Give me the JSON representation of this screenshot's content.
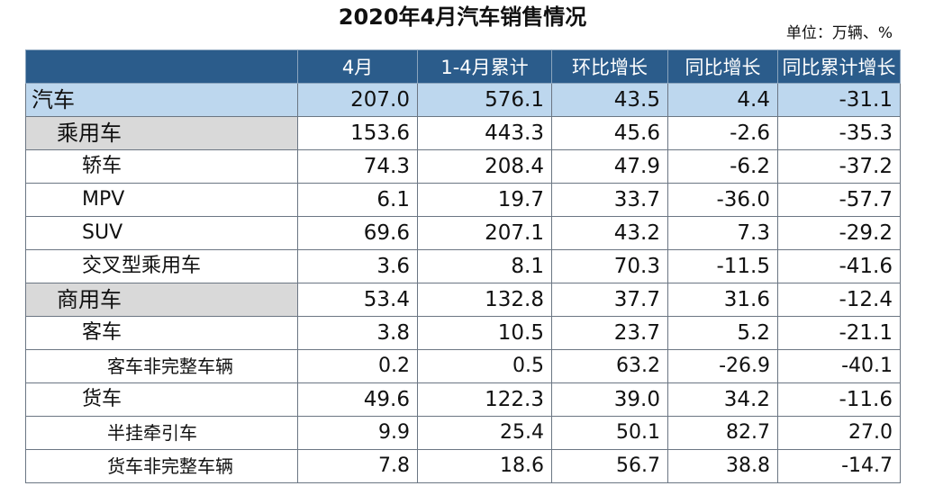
{
  "title": "2020年4月汽车销售情况",
  "unit": "单位：万辆、%",
  "columns": [
    "",
    "4月",
    "1-4月累计",
    "环比增长",
    "同比增长",
    "同比累计增长"
  ],
  "rows": [
    {
      "level": 0,
      "label": "汽车",
      "values": [
        "207.0",
        "576.1",
        "43.5",
        "4.4",
        "-31.1"
      ]
    },
    {
      "level": 1,
      "label": "乘用车",
      "values": [
        "153.6",
        "443.3",
        "45.6",
        "-2.6",
        "-35.3"
      ]
    },
    {
      "level": 2,
      "label": "轿车",
      "values": [
        "74.3",
        "208.4",
        "47.9",
        "-6.2",
        "-37.2"
      ]
    },
    {
      "level": 2,
      "label": "MPV",
      "values": [
        "6.1",
        "19.7",
        "33.7",
        "-36.0",
        "-57.7"
      ]
    },
    {
      "level": 2,
      "label": "SUV",
      "values": [
        "69.6",
        "207.1",
        "43.2",
        "7.3",
        "-29.2"
      ]
    },
    {
      "level": 2,
      "label": "交叉型乘用车",
      "values": [
        "3.6",
        "8.1",
        "70.3",
        "-11.5",
        "-41.6"
      ]
    },
    {
      "level": 1,
      "label": "商用车",
      "values": [
        "53.4",
        "132.8",
        "37.7",
        "31.6",
        "-12.4"
      ]
    },
    {
      "level": 2,
      "label": "客车",
      "values": [
        "3.8",
        "10.5",
        "23.7",
        "5.2",
        "-21.1"
      ]
    },
    {
      "level": 3,
      "label": "客车非完整车辆",
      "values": [
        "0.2",
        "0.5",
        "63.2",
        "-26.9",
        "-40.1"
      ]
    },
    {
      "level": 2,
      "label": "货车",
      "values": [
        "49.6",
        "122.3",
        "39.0",
        "34.2",
        "-11.6"
      ]
    },
    {
      "level": 3,
      "label": "半挂牵引车",
      "values": [
        "9.9",
        "25.4",
        "50.1",
        "82.7",
        "27.0"
      ]
    },
    {
      "level": 3,
      "label": "货车非完整车辆",
      "values": [
        "7.8",
        "18.6",
        "56.7",
        "38.8",
        "-14.7"
      ]
    }
  ]
}
